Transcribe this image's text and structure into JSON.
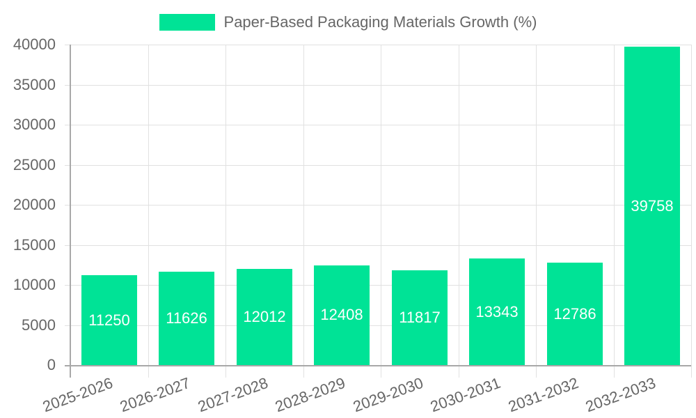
{
  "chart_data": {
    "type": "bar",
    "title": "",
    "legend": [
      "Paper-Based Packaging Materials Growth (%)"
    ],
    "legend_position": "top",
    "categories": [
      "2025-2026",
      "2026-2027",
      "2027-2028",
      "2028-2029",
      "2029-2030",
      "2030-2031",
      "2031-2032",
      "2032-2033"
    ],
    "series": [
      {
        "name": "Paper-Based Packaging Materials Growth (%)",
        "values": [
          11250,
          11626,
          12012,
          12408,
          11817,
          13343,
          12786,
          39758
        ],
        "color": "#00e396"
      }
    ],
    "xlabel": "",
    "ylabel": "",
    "ylim": [
      0,
      40000
    ],
    "yticks": [
      0,
      5000,
      10000,
      15000,
      20000,
      25000,
      30000,
      35000,
      40000
    ],
    "grid": true,
    "data_labels": true
  },
  "legend": {
    "label": "Paper-Based Packaging Materials Growth (%)",
    "color": "#00e396"
  },
  "yticks": [
    "0",
    "5000",
    "10000",
    "15000",
    "20000",
    "25000",
    "30000",
    "35000",
    "40000"
  ],
  "bars": [
    {
      "category": "2025-2026",
      "label": "11250"
    },
    {
      "category": "2026-2027",
      "label": "11626"
    },
    {
      "category": "2027-2028",
      "label": "12012"
    },
    {
      "category": "2028-2029",
      "label": "12408"
    },
    {
      "category": "2029-2030",
      "label": "11817"
    },
    {
      "category": "2030-2031",
      "label": "13343"
    },
    {
      "category": "2031-2032",
      "label": "12786"
    },
    {
      "category": "2032-2033",
      "label": "39758"
    }
  ]
}
